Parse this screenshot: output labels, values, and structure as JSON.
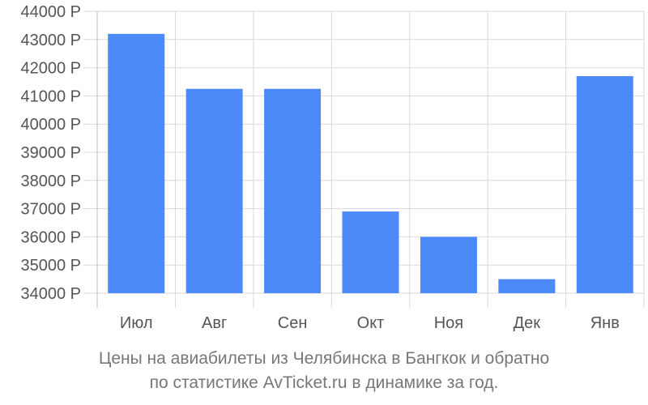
{
  "chart_data": {
    "type": "bar",
    "categories": [
      "Июл",
      "Авг",
      "Сен",
      "Окт",
      "Ноя",
      "Дек",
      "Янв"
    ],
    "values": [
      43200,
      41250,
      41250,
      36900,
      36000,
      34500,
      41700
    ],
    "ylim": [
      34000,
      44000
    ],
    "yticks": [
      34000,
      35000,
      36000,
      37000,
      38000,
      39000,
      40000,
      41000,
      42000,
      43000,
      44000
    ],
    "ytick_labels": [
      "34000 Р",
      "35000 Р",
      "36000 Р",
      "37000 Р",
      "38000 Р",
      "39000 Р",
      "40000 Р",
      "41000 Р",
      "42000 Р",
      "43000 Р",
      "44000 Р"
    ],
    "grid": true,
    "bar_color": "#4d8af9"
  },
  "caption": {
    "line1": "Цены на авиабилеты из Челябинска в Бангкок и обратно",
    "line2": "по статистике AvTicket.ru в динамике за год."
  }
}
